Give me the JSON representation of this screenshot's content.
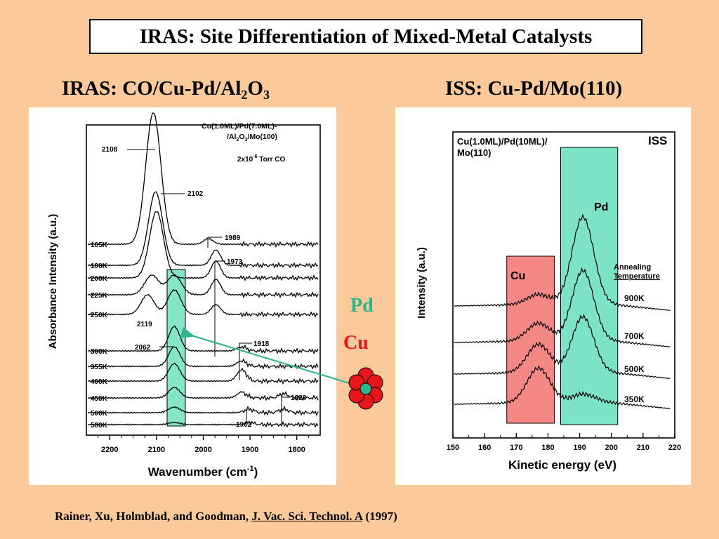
{
  "slide": {
    "title": "IRAS:  Site Differentiation of Mixed-Metal Catalysts",
    "left_heading": {
      "pre": "IRAS:  CO/Cu-Pd/Al",
      "sub1": "2",
      "mid": "O",
      "sub2": "3"
    },
    "right_heading": "ISS:  Cu-Pd/Mo(110)",
    "pd_label": "Pd",
    "cu_label": "Cu",
    "footer": {
      "authors": "Rainer, Xu, Holmblad, and Goodman, ",
      "journal": "J. Vac. Sci. Technol. A",
      "year": " (1997)"
    },
    "colors": {
      "background": "#FCC99A",
      "pd": "#2DB48C",
      "cu": "#E8161B",
      "highlight_green": "#6FE0C0",
      "highlight_red": "#F47A78"
    }
  },
  "chart_data": [
    {
      "type": "line",
      "legend": "Cu(1.0ML)/Pd(7.0ML)-/Al2O3/Mo(100)",
      "legend_lines": [
        "Cu(1.0ML)/Pd(7.0ML)-",
        "/Al",
        "2",
        "O",
        "3",
        "/Mo(100)"
      ],
      "pressure": {
        "pre": "2x10",
        "exp": "-6",
        "post": " Torr CO"
      },
      "xlabel": "Wavenumber (cm-1)",
      "xlabel_parts": {
        "pre": "Wavenumber (cm",
        "exp": "-1",
        "post": ")"
      },
      "ylabel": "Absorbance Intensity (a.u.)",
      "xlim": [
        2250,
        1750
      ],
      "x_ticks": [
        "2200",
        "2100",
        "2000",
        "1900",
        "1800"
      ],
      "x_tick_values": [
        2200,
        2100,
        2000,
        1900,
        1800
      ],
      "series": [
        {
          "name": "105K",
          "peaks": [
            [
              2108,
              150
            ],
            [
              2102,
              40
            ],
            [
              1989,
              8
            ]
          ],
          "width": 16
        },
        {
          "name": "180K",
          "peaks": [
            [
              2102,
              105
            ],
            [
              1973,
              22
            ]
          ],
          "width": 15
        },
        {
          "name": "200K",
          "peaks": [
            [
              2100,
              95
            ],
            [
              1973,
              24
            ]
          ],
          "width": 15
        },
        {
          "name": "225K",
          "peaks": [
            [
              2110,
              28
            ],
            [
              2062,
              28
            ],
            [
              1973,
              22
            ]
          ],
          "width": 15
        },
        {
          "name": "250K",
          "peaks": [
            [
              2119,
              28
            ],
            [
              2062,
              35
            ],
            [
              1973,
              14
            ]
          ],
          "width": 14
        },
        {
          "name": "300K",
          "peaks": [
            [
              2062,
              35
            ],
            [
              1918,
              6
            ]
          ],
          "width": 12
        },
        {
          "name": "355K",
          "peaks": [
            [
              2062,
              28
            ],
            [
              1918,
              8
            ]
          ],
          "width": 12
        },
        {
          "name": "400K",
          "peaks": [
            [
              2062,
              25
            ],
            [
              1918,
              16
            ]
          ],
          "width": 12
        },
        {
          "name": "450K",
          "peaks": [
            [
              2062,
              15
            ],
            [
              1918,
              8
            ],
            [
              1828,
              6
            ]
          ],
          "width": 12
        },
        {
          "name": "500K",
          "peaks": [
            [
              2062,
              8
            ],
            [
              1902,
              5
            ],
            [
              1828,
              5
            ]
          ],
          "width": 12
        },
        {
          "name": "580K",
          "peaks": [
            [
              2062,
              3
            ],
            [
              1902,
              3
            ]
          ],
          "width": 12
        }
      ],
      "annotations": [
        "2108",
        "2102",
        "1989",
        "1973",
        "2119",
        "2062",
        "1918",
        "1828",
        "1902"
      ]
    },
    {
      "type": "line",
      "title": "ISS",
      "legend_lines": [
        "Cu(1.0ML)/Pd(10ML)/",
        "Mo(110)"
      ],
      "xlabel": "Kinetic energy (eV)",
      "ylabel": "Intensity (a.u.)",
      "xlim": [
        150,
        220
      ],
      "x_ticks": [
        "150",
        "160",
        "170",
        "180",
        "190",
        "200",
        "210",
        "220"
      ],
      "x_tick_values": [
        150,
        160,
        170,
        180,
        190,
        200,
        210,
        220
      ],
      "cu_region": [
        167,
        182
      ],
      "pd_region": [
        184,
        202
      ],
      "cu_label": "Cu",
      "pd_label": "Pd",
      "annealing_label": [
        "Annealing",
        "Temperature"
      ],
      "series": [
        {
          "name": "900K",
          "cu": 28,
          "pd": 205
        },
        {
          "name": "700K",
          "cu": 50,
          "pd": 165
        },
        {
          "name": "500K",
          "cu": 80,
          "pd": 130
        },
        {
          "name": "350K",
          "cu": 98,
          "pd": 18
        }
      ]
    }
  ]
}
